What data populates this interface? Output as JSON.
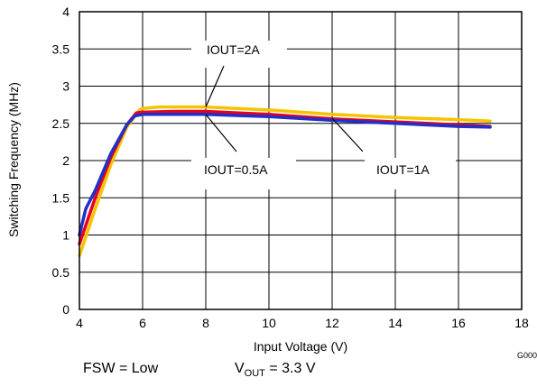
{
  "chart_data": {
    "type": "line",
    "title": "",
    "xlabel": "Input Voltage (V)",
    "ylabel": "Switching Frequency (MHz)",
    "xlim": [
      4,
      18
    ],
    "ylim": [
      0,
      4
    ],
    "x_ticks": [
      "4",
      "6",
      "8",
      "10",
      "12",
      "14",
      "16",
      "18"
    ],
    "y_ticks": [
      "0",
      "0.5",
      "1",
      "1.5",
      "2",
      "2.5",
      "3",
      "3.5",
      "4"
    ],
    "grid": true,
    "legend": "none",
    "figure_code": "G000",
    "series": [
      {
        "name": "IOUT=2A",
        "color": "#f5c300",
        "x": [
          4,
          4.5,
          5,
          5.5,
          5.9,
          6,
          6.5,
          7,
          8,
          10,
          12,
          14,
          16,
          17
        ],
        "y": [
          0.72,
          1.35,
          1.95,
          2.45,
          2.68,
          2.7,
          2.72,
          2.72,
          2.72,
          2.68,
          2.62,
          2.58,
          2.55,
          2.53
        ]
      },
      {
        "name": "IOUT=1A",
        "color": "#e8001c",
        "x": [
          4,
          4.5,
          5,
          5.5,
          5.8,
          6,
          7,
          8,
          10,
          12,
          14,
          16,
          17
        ],
        "y": [
          0.88,
          1.5,
          2.05,
          2.48,
          2.64,
          2.65,
          2.66,
          2.66,
          2.62,
          2.56,
          2.52,
          2.48,
          2.46
        ]
      },
      {
        "name": "IOUT=0.5A",
        "color": "#2030c8",
        "x": [
          4,
          4.2,
          4.5,
          5,
          5.5,
          5.75,
          6,
          7,
          8,
          10,
          12,
          14,
          16,
          17
        ],
        "y": [
          1.0,
          1.35,
          1.6,
          2.1,
          2.48,
          2.6,
          2.62,
          2.62,
          2.62,
          2.59,
          2.54,
          2.5,
          2.46,
          2.45
        ]
      }
    ],
    "annotations": [
      {
        "text": "IOUT=2A",
        "target_x": 8,
        "target_y": 2.72
      },
      {
        "text": "IOUT=0.5A",
        "target_x": 8,
        "target_y": 2.62
      },
      {
        "text": "IOUT=1A",
        "target_x": 12,
        "target_y": 2.57
      }
    ]
  },
  "conditions": {
    "fsw": "FSW = Low",
    "vout_prefix": "V",
    "vout_sub": "OUT",
    "vout_value": " = 3.3 V"
  }
}
